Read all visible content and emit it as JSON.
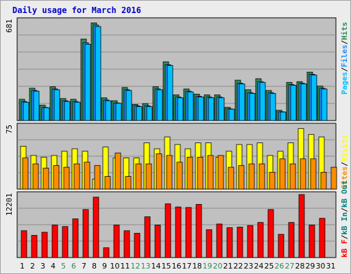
{
  "title": "Daily usage for March 2016",
  "colors": {
    "background": "#ffffff",
    "frame": "#ececec",
    "plot_bg": "#c0c0c0",
    "grid": "#8c8c8c",
    "title": "#0000cc",
    "hits": "#2e8b57",
    "files": "#1e90ff",
    "pages": "#00bfff",
    "visits": "#ffff00",
    "sites": "#ff8c00",
    "kb_in": "#008080",
    "kb_out": "#008080",
    "kb": "#ff0000",
    "weekend_tick": "#2e8b57",
    "weekday_tick": "#000000"
  },
  "legend": {
    "pages": "Pages",
    "files": "Files",
    "hits": "Hits",
    "visits": "Visits",
    "sites": "Sites",
    "kb_out": "kB Out",
    "kb_in": "kB In",
    "kb_f": "kB F",
    "sep": "/"
  },
  "chart_data": {
    "type": "bar",
    "title": "Daily usage for March 2016",
    "x": [
      "1",
      "2",
      "3",
      "4",
      "5",
      "6",
      "7",
      "8",
      "9",
      "10",
      "11",
      "12",
      "13",
      "14",
      "15",
      "16",
      "17",
      "18",
      "19",
      "20",
      "21",
      "22",
      "23",
      "24",
      "25",
      "26",
      "27",
      "28",
      "29",
      "30",
      "31"
    ],
    "weekend_days": [
      "5",
      "6",
      "12",
      "13",
      "19",
      "20",
      "26",
      "27"
    ],
    "panels": [
      {
        "name": "hits-files-pages",
        "ymax_label": "681",
        "ylim": [
          0,
          681
        ],
        "series": [
          {
            "name": "Hits",
            "values": [
              145,
              220,
              105,
              230,
              150,
              145,
              555,
              665,
              155,
              135,
              225,
              110,
              115,
              230,
              400,
              175,
              215,
              180,
              175,
              175,
              90,
              275,
              210,
              285,
              205,
              70,
              260,
              265,
              330,
              235,
              0
            ]
          },
          {
            "name": "Files",
            "values": [
              130,
              205,
              90,
              215,
              135,
              130,
              530,
              650,
              140,
              120,
              210,
              100,
              100,
              215,
              380,
              160,
              200,
              165,
              160,
              160,
              80,
              255,
              190,
              265,
              190,
              60,
              245,
              255,
              315,
              220,
              0
            ]
          },
          {
            "name": "Pages",
            "values": [
              125,
              200,
              88,
              210,
              130,
              125,
              520,
              640,
              135,
              118,
              205,
              95,
              95,
              210,
              375,
              155,
              195,
              160,
              155,
              155,
              78,
              250,
              185,
              260,
              185,
              58,
              240,
              250,
              310,
              215,
              0
            ]
          }
        ],
        "series_note": ""
      },
      {
        "name": "visits-sites",
        "ymax_label": "75",
        "ylim": [
          0,
          75
        ],
        "series": [
          {
            "name": "Visits",
            "values": [
              51,
              40,
              38,
              40,
              45,
              48,
              45,
              12,
              50,
              37,
              37,
              37,
              55,
              48,
              62,
              53,
              48,
              55,
              55,
              38,
              45,
              53,
              53,
              55,
              40,
              45,
              55,
              72,
              65,
              62,
              0
            ]
          },
          {
            "name": "Sites",
            "values": [
              37,
              30,
              25,
              28,
              26,
              30,
              32,
              28,
              15,
              43,
              15,
              30,
              30,
              42,
              40,
              32,
              38,
              38,
              40,
              40,
              26,
              28,
              30,
              30,
              20,
              36,
              30,
              36,
              36,
              20,
              26
            ]
          }
        ]
      },
      {
        "name": "kb",
        "ymax_label": "12201",
        "ylim": [
          0,
          12201
        ],
        "series": [
          {
            "name": "kB F",
            "values": [
              5200,
              4300,
              4900,
              6300,
              6000,
              7500,
              9300,
              11700,
              1900,
              6300,
              5200,
              4700,
              7900,
              6300,
              10400,
              9800,
              9700,
              10300,
              5400,
              6500,
              5800,
              5900,
              6200,
              6800,
              9300,
              4500,
              6800,
              12201,
              6300,
              7600,
              0
            ]
          }
        ]
      }
    ]
  }
}
